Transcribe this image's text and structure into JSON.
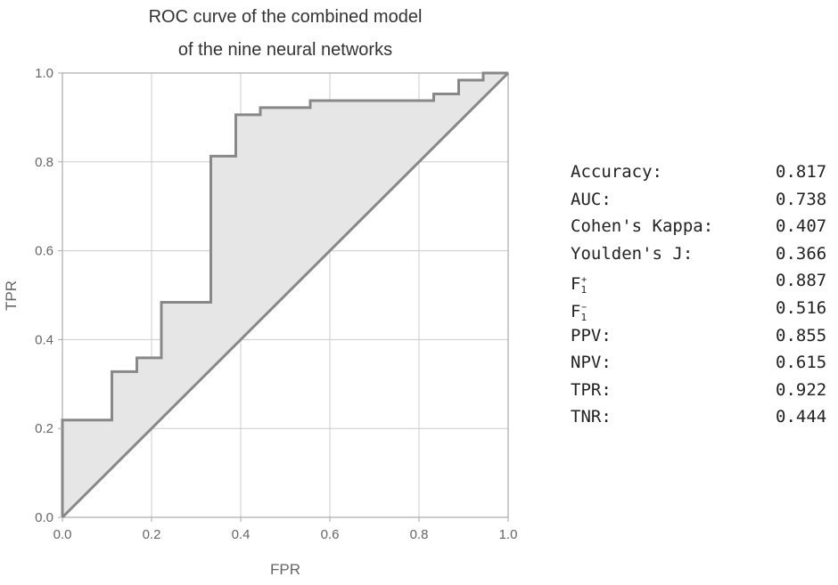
{
  "chart_data": {
    "type": "line",
    "title_line1": "ROC curve of the combined model",
    "title_line2": "of the nine neural networks",
    "xlabel": "FPR",
    "ylabel": "TPR",
    "xlim": [
      0.0,
      1.0
    ],
    "ylim": [
      0.0,
      1.0
    ],
    "xticks": [
      "0.0",
      "0.2",
      "0.4",
      "0.6",
      "0.8",
      "1.0"
    ],
    "yticks": [
      "0.0",
      "0.2",
      "0.4",
      "0.6",
      "0.8",
      "1.0"
    ],
    "grid": true,
    "colors": {
      "curve": "#888888",
      "fill": "#e6e6e6",
      "grid": "#cccccc",
      "frame": "#aaaaaa"
    },
    "series": [
      {
        "values": [
          [
            0,
            0
          ],
          [
            0,
            0.219
          ],
          [
            0.111,
            0.219
          ],
          [
            0.111,
            0.328
          ],
          [
            0.167,
            0.328
          ],
          [
            0.167,
            0.359
          ],
          [
            0.222,
            0.359
          ],
          [
            0.222,
            0.484
          ],
          [
            0.333,
            0.484
          ],
          [
            0.333,
            0.813
          ],
          [
            0.389,
            0.813
          ],
          [
            0.389,
            0.906
          ],
          [
            0.444,
            0.906
          ],
          [
            0.444,
            0.922
          ],
          [
            0.556,
            0.922
          ],
          [
            0.556,
            0.938
          ],
          [
            0.833,
            0.938
          ],
          [
            0.833,
            0.953
          ],
          [
            0.889,
            0.953
          ],
          [
            0.889,
            0.984
          ],
          [
            0.944,
            0.984
          ],
          [
            0.944,
            1.0
          ],
          [
            1.0,
            1.0
          ]
        ]
      },
      {
        "values": [
          [
            0,
            0
          ],
          [
            1,
            1
          ]
        ]
      }
    ]
  },
  "metrics": [
    {
      "label": "Accuracy:",
      "value": "0.817"
    },
    {
      "label": "AUC:",
      "value": "0.738"
    },
    {
      "label": "Cohen's Kappa:",
      "value": "0.407"
    },
    {
      "label": "Youlden's J:",
      "value": "0.366"
    },
    {
      "label": "F",
      "sub": "1",
      "sup": "+",
      "value": "0.887"
    },
    {
      "label": "F",
      "sub": "1",
      "sup": "−",
      "value": "0.516"
    },
    {
      "label": "PPV:",
      "value": "0.855"
    },
    {
      "label": "NPV:",
      "value": "0.615"
    },
    {
      "label": "TPR:",
      "value": "0.922"
    },
    {
      "label": "TNR:",
      "value": "0.444"
    }
  ]
}
